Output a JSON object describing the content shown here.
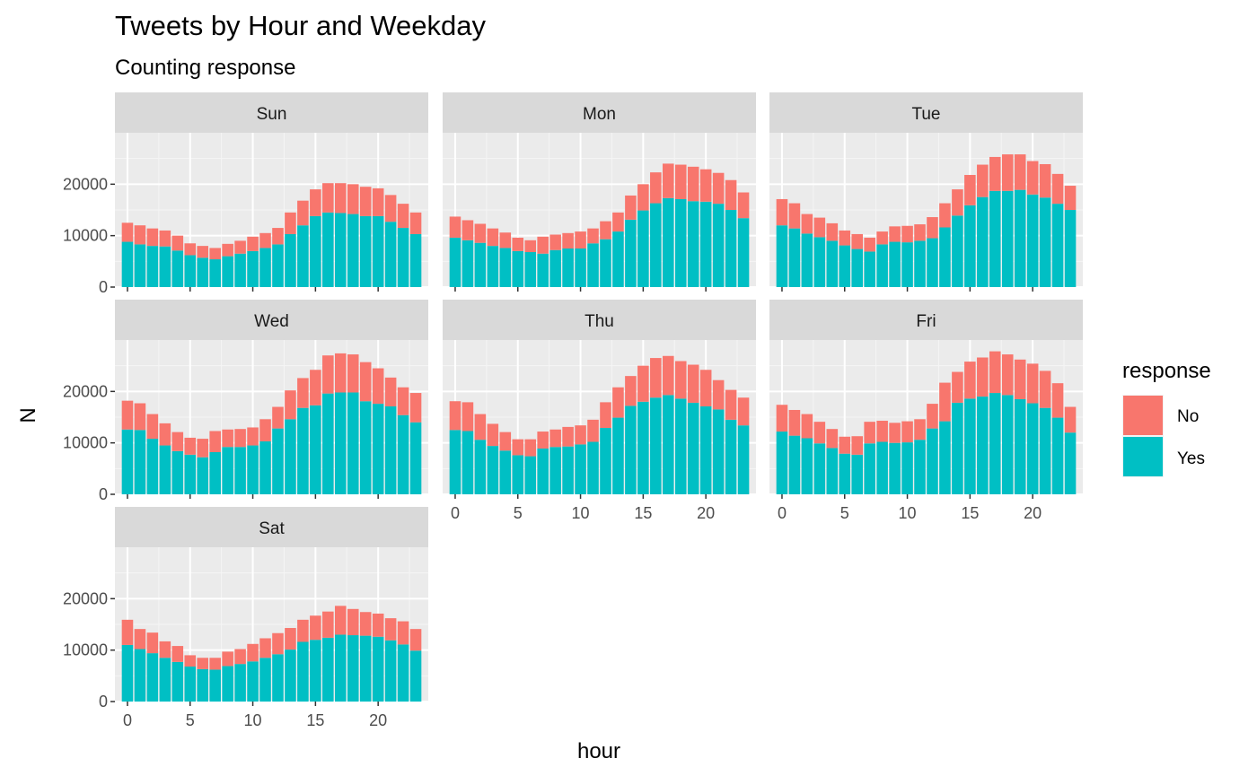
{
  "chart_data": {
    "type": "bar",
    "stacked": true,
    "title": "Tweets by Hour and Weekday",
    "subtitle": "Counting response",
    "xlabel": "hour",
    "ylabel": "N",
    "xlim": [
      -1,
      24
    ],
    "ylim": [
      0,
      30000
    ],
    "xticks": [
      0,
      5,
      10,
      15,
      20
    ],
    "yticks": [
      0,
      10000,
      20000
    ],
    "grid": true,
    "legend": {
      "title": "response",
      "position": "right",
      "entries": [
        {
          "name": "No",
          "color": "#F8766D"
        },
        {
          "name": "Yes",
          "color": "#00BFC4"
        }
      ]
    },
    "x": [
      0,
      1,
      2,
      3,
      4,
      5,
      6,
      7,
      8,
      9,
      10,
      11,
      12,
      13,
      14,
      15,
      16,
      17,
      18,
      19,
      20,
      21,
      22,
      23
    ],
    "panels": [
      {
        "label": "Sun",
        "yes": [
          8800,
          8300,
          8000,
          7900,
          7100,
          6200,
          5700,
          5400,
          6000,
          6500,
          7000,
          7600,
          8300,
          10300,
          12000,
          13800,
          14500,
          14400,
          14200,
          13800,
          13800,
          12700,
          11500,
          10300
        ],
        "total": [
          12500,
          12000,
          11400,
          11000,
          10000,
          8500,
          8000,
          7600,
          8400,
          9000,
          9800,
          10500,
          11500,
          14500,
          16800,
          19000,
          20200,
          20200,
          20000,
          19500,
          19200,
          17900,
          16200,
          14500
        ]
      },
      {
        "label": "Mon",
        "yes": [
          9600,
          9100,
          8600,
          8000,
          7600,
          7000,
          6800,
          6500,
          7200,
          7500,
          7500,
          8500,
          9300,
          10800,
          13100,
          14900,
          16300,
          17300,
          17100,
          16700,
          16600,
          16200,
          15000,
          13400
        ],
        "total": [
          13700,
          13000,
          12300,
          11400,
          10600,
          9600,
          9100,
          9800,
          10200,
          10500,
          10800,
          11400,
          12800,
          14500,
          17800,
          20000,
          22300,
          24000,
          23800,
          23400,
          22900,
          22200,
          20800,
          18400
        ]
      },
      {
        "label": "Tue",
        "yes": [
          12000,
          11400,
          10400,
          9700,
          9000,
          8100,
          7400,
          6900,
          8300,
          8800,
          8700,
          9000,
          9500,
          11600,
          13900,
          15900,
          17500,
          18700,
          18700,
          18900,
          18000,
          17400,
          16200,
          15000
        ],
        "total": [
          17100,
          16300,
          14200,
          13500,
          12400,
          11000,
          10300,
          9600,
          10800,
          11800,
          11900,
          12200,
          13600,
          16300,
          19000,
          21800,
          23800,
          25300,
          25800,
          25800,
          24500,
          23900,
          22000,
          19700
        ]
      },
      {
        "label": "Wed",
        "yes": [
          12600,
          12500,
          10800,
          9500,
          8400,
          7700,
          7200,
          8200,
          9200,
          9200,
          9500,
          10300,
          12800,
          14600,
          16800,
          17300,
          19600,
          19800,
          19800,
          18100,
          17600,
          17100,
          15400,
          14000
        ],
        "total": [
          18200,
          17700,
          15600,
          13800,
          12100,
          11000,
          10800,
          12300,
          12600,
          12700,
          13000,
          14600,
          17000,
          20200,
          22600,
          24200,
          27000,
          27400,
          27200,
          25700,
          24500,
          22700,
          20800,
          19700
        ]
      },
      {
        "label": "Thu",
        "yes": [
          12500,
          12300,
          10600,
          9400,
          8500,
          7600,
          7400,
          8900,
          9200,
          9300,
          9700,
          10200,
          12900,
          14900,
          17200,
          18000,
          18800,
          19300,
          18600,
          17800,
          17100,
          16500,
          14500,
          13400
        ],
        "total": [
          18100,
          17900,
          15600,
          13700,
          12100,
          10700,
          10700,
          12200,
          12600,
          13100,
          13400,
          14500,
          17900,
          20800,
          23000,
          25000,
          26500,
          26900,
          25900,
          25200,
          24200,
          22200,
          20300,
          18800
        ]
      },
      {
        "label": "Fri",
        "yes": [
          12200,
          11400,
          10900,
          9900,
          9000,
          7900,
          7700,
          9900,
          10200,
          10000,
          10100,
          10600,
          12800,
          14200,
          17800,
          18600,
          19000,
          19700,
          19300,
          18500,
          17700,
          16800,
          14900,
          12000
        ],
        "total": [
          17400,
          16400,
          15600,
          14100,
          12700,
          11200,
          11300,
          14100,
          14300,
          13900,
          14200,
          14600,
          17600,
          21700,
          23800,
          25800,
          26600,
          27800,
          27200,
          26200,
          25400,
          24000,
          21600,
          17000
        ]
      },
      {
        "label": "Sat",
        "yes": [
          11000,
          10200,
          9400,
          8500,
          7700,
          6800,
          6300,
          6200,
          6900,
          7300,
          7800,
          8500,
          9200,
          10100,
          11600,
          12000,
          12400,
          13000,
          12900,
          12800,
          12600,
          11900,
          11100,
          9900
        ],
        "total": [
          15900,
          14100,
          13400,
          11700,
          10800,
          9000,
          8500,
          8500,
          9700,
          10200,
          11200,
          12300,
          13300,
          14300,
          15900,
          16700,
          17500,
          18600,
          18000,
          17400,
          17100,
          16200,
          15600,
          14100
        ]
      }
    ]
  }
}
